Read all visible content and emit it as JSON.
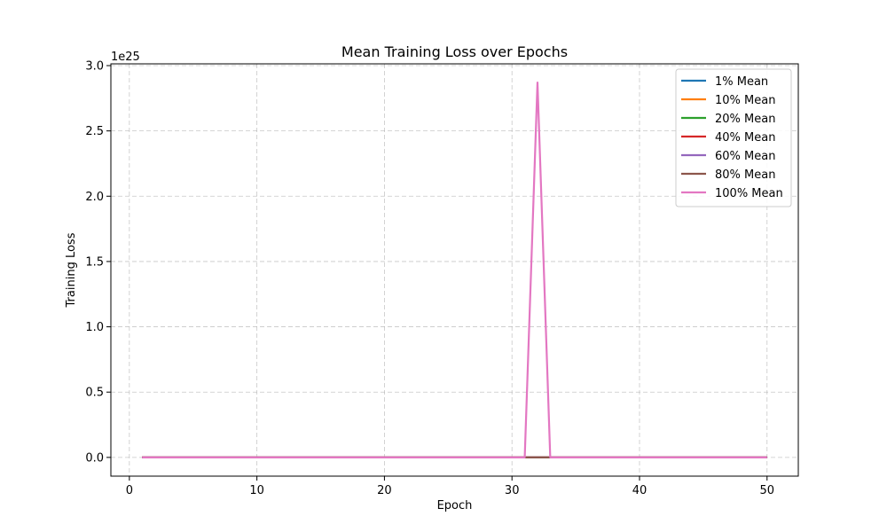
{
  "chart_data": {
    "type": "line",
    "title": "Mean Training Loss over Epochs",
    "xlabel": "Epoch",
    "ylabel": "Training Loss",
    "y_offset_label": "1e25",
    "xlim": [
      -1.45,
      52.45
    ],
    "ylim": [
      -0.1435,
      3.0135
    ],
    "y_scale_multiplier": 1e+25,
    "xticks": [
      0,
      10,
      20,
      30,
      40,
      50
    ],
    "yticks": [
      0.0,
      0.5,
      1.0,
      1.5,
      2.0,
      2.5,
      3.0
    ],
    "ytick_labels": [
      "0.0",
      "0.5",
      "1.0",
      "1.5",
      "2.0",
      "2.5",
      "3.0"
    ],
    "grid": true,
    "legend_position": "top-right",
    "x_start": 1,
    "x_end": 50,
    "series": [
      {
        "name": "1% Mean",
        "color": "#1f77b4",
        "constant": 0,
        "peak": null
      },
      {
        "name": "10% Mean",
        "color": "#ff7f0e",
        "constant": 0,
        "peak": null
      },
      {
        "name": "20% Mean",
        "color": "#2ca02c",
        "constant": 0,
        "peak": null
      },
      {
        "name": "40% Mean",
        "color": "#d62728",
        "constant": 0,
        "peak": null
      },
      {
        "name": "60% Mean",
        "color": "#9467bd",
        "constant": 0,
        "peak": null
      },
      {
        "name": "80% Mean",
        "color": "#8c564b",
        "constant": 0,
        "peak": null
      },
      {
        "name": "100% Mean",
        "color": "#e377c2",
        "constant": 0,
        "peak": {
          "x": 32,
          "y": 2.87
        }
      }
    ]
  }
}
